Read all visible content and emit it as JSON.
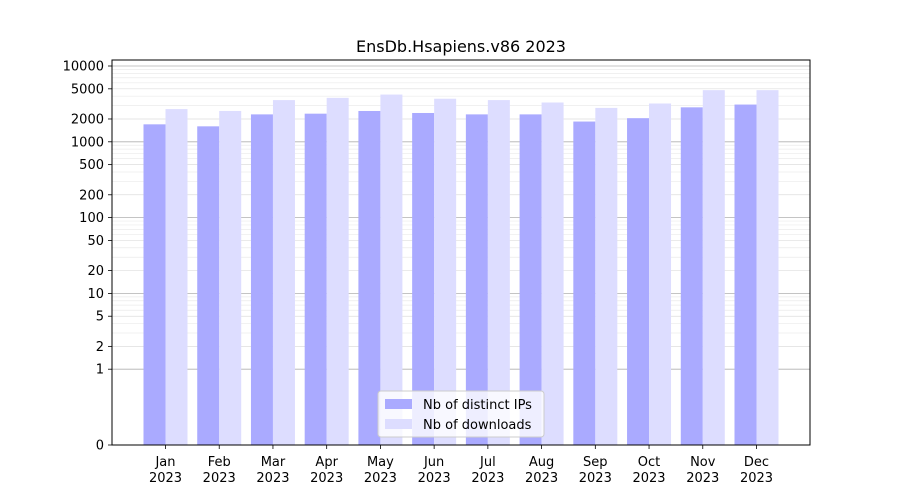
{
  "chart_data": {
    "type": "bar",
    "title": "EnsDb.Hsapiens.v86 2023",
    "xlabel": "",
    "ylabel": "",
    "y_scale": "symlog",
    "ylim": [
      0,
      12000
    ],
    "y_ticks": [
      0,
      1,
      2,
      5,
      10,
      20,
      50,
      100,
      200,
      500,
      1000,
      2000,
      5000,
      10000
    ],
    "y_tick_labels": [
      "0",
      "1",
      "2",
      "5",
      "10",
      "20",
      "50",
      "100",
      "200",
      "500",
      "1000",
      "2000",
      "5000",
      "10000"
    ],
    "grid": true,
    "legend_position": "bottom-center",
    "categories": [
      "Jan\n2023",
      "Feb\n2023",
      "Mar\n2023",
      "Apr\n2023",
      "May\n2023",
      "Jun\n2023",
      "Jul\n2023",
      "Aug\n2023",
      "Sep\n2023",
      "Oct\n2023",
      "Nov\n2023",
      "Dec\n2023"
    ],
    "series": [
      {
        "name": "Nb of distinct IPs",
        "color": "#aaaaff",
        "values": [
          1700,
          1600,
          2300,
          2350,
          2550,
          2400,
          2300,
          2300,
          1850,
          2050,
          2850,
          3100
        ]
      },
      {
        "name": "Nb of downloads",
        "color": "#ddddff",
        "values": [
          2700,
          2550,
          3550,
          3800,
          4200,
          3700,
          3550,
          3300,
          2800,
          3200,
          4800,
          4800
        ]
      }
    ]
  }
}
